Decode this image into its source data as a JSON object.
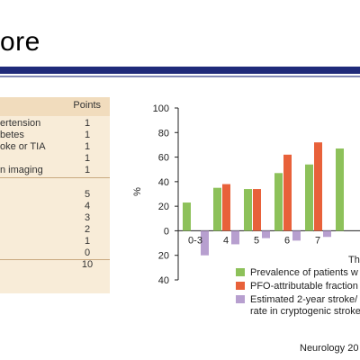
{
  "slide": {
    "title": "ore",
    "citation": "Neurology 20"
  },
  "score_table": {
    "header_points": "Points",
    "rows": [
      {
        "label": "ertension",
        "points": "1"
      },
      {
        "label": "betes",
        "points": "1"
      },
      {
        "label": "oke or TIA",
        "points": "1"
      },
      {
        "label": "",
        "points": "1"
      },
      {
        "label": "n imaging",
        "points": "1"
      },
      {
        "label": "",
        "points": ""
      },
      {
        "label": "",
        "points": "5"
      },
      {
        "label": "",
        "points": "4"
      },
      {
        "label": "",
        "points": "3"
      },
      {
        "label": "",
        "points": "2"
      },
      {
        "label": "",
        "points": "1"
      },
      {
        "label": "",
        "points": "0"
      },
      {
        "label": "",
        "points": "10"
      }
    ]
  },
  "colors": {
    "green": "#8dc15a",
    "orange": "#e8613a",
    "purple": "#b79fcf",
    "title_rule": "#1f2a7a",
    "table_bg": "#f8ecd8",
    "table_header": "#f1dcbd"
  },
  "chart_data": {
    "type": "bar",
    "ylabel": "%",
    "ylim": [
      -40,
      100
    ],
    "yticks": [
      {
        "value": 100,
        "label": "100"
      },
      {
        "value": 80,
        "label": "80"
      },
      {
        "value": 60,
        "label": "60"
      },
      {
        "value": 40,
        "label": "40"
      },
      {
        "value": 20,
        "label": "20"
      },
      {
        "value": 0,
        "label": "0"
      },
      {
        "value": -20,
        "label": "20"
      },
      {
        "value": -40,
        "label": "40"
      }
    ],
    "categories": [
      "0-3",
      "4",
      "5",
      "6",
      "7",
      ""
    ],
    "series": [
      {
        "name": "Prevalence of patients w",
        "color": "#8dc15a",
        "values": [
          23,
          35,
          34,
          47,
          54,
          67
        ]
      },
      {
        "name": "PFO-attributable fraction",
        "color": "#e8613a",
        "values": [
          0,
          38,
          34,
          62,
          72,
          null
        ]
      },
      {
        "name": "Estimated 2-year stroke/",
        "name_line2": "rate in cryptogenic stroke",
        "color": "#b79fcf",
        "values": [
          -20,
          -11,
          -6,
          -8,
          -5,
          null
        ]
      }
    ],
    "xlabel": "The",
    "legend_position": "bottom-right",
    "grid": false
  }
}
